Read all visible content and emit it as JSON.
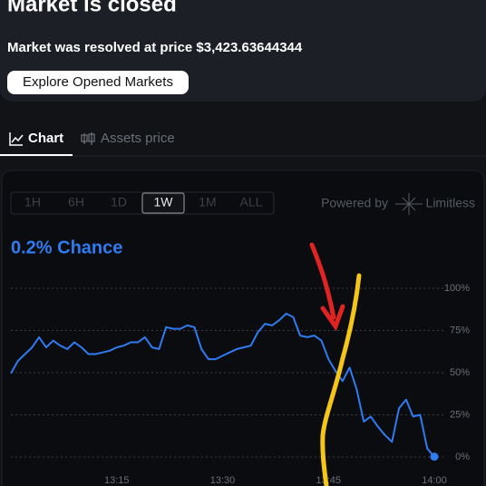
{
  "header": {
    "title": "Market is closed",
    "resolution": "Market was resolved at price $3,423.63644344",
    "button": "Explore Opened Markets"
  },
  "tabs": [
    "Chart",
    "Assets price"
  ],
  "ranges": [
    "1H",
    "6H",
    "1D",
    "1W",
    "1M",
    "ALL"
  ],
  "active_range": "1W",
  "powered_by": "Powered by",
  "brand": "Limitless",
  "chance_label": "0.2% Chance",
  "chart_data": {
    "type": "line",
    "color": "#2f7bf0",
    "grid": true,
    "x": [
      "13:00",
      "13:01",
      "13:02",
      "13:03",
      "13:04",
      "13:05",
      "13:06",
      "13:07",
      "13:08",
      "13:09",
      "13:10",
      "13:11",
      "13:12",
      "13:13",
      "13:14",
      "13:15",
      "13:16",
      "13:17",
      "13:18",
      "13:19",
      "13:20",
      "13:21",
      "13:22",
      "13:23",
      "13:24",
      "13:25",
      "13:26",
      "13:27",
      "13:28",
      "13:29",
      "13:30",
      "13:31",
      "13:32",
      "13:33",
      "13:34",
      "13:35",
      "13:36",
      "13:37",
      "13:38",
      "13:39",
      "13:40",
      "13:41",
      "13:42",
      "13:43",
      "13:44",
      "13:45",
      "13:46",
      "13:47",
      "13:48",
      "13:49",
      "13:50",
      "13:51",
      "13:52",
      "13:53",
      "13:54",
      "13:55",
      "13:56",
      "13:57",
      "13:58",
      "13:59",
      "14:00"
    ],
    "values": [
      49.5,
      57,
      61,
      65,
      71,
      65,
      69,
      66,
      64,
      68,
      65,
      61,
      61,
      62,
      63,
      65,
      66,
      68,
      68,
      71,
      65,
      64,
      77,
      76,
      76,
      78,
      77,
      64,
      58,
      58,
      60,
      62,
      64,
      65,
      66,
      74,
      79,
      78,
      81,
      85,
      83,
      72,
      71,
      72,
      69,
      58,
      51,
      45,
      53,
      40,
      21,
      24,
      18,
      13,
      9,
      29,
      34,
      24,
      25,
      5,
      0.2
    ],
    "ylim": [
      0,
      100
    ],
    "yticks": [
      {
        "value": 0,
        "label": "0%"
      },
      {
        "value": 25,
        "label": "25%"
      },
      {
        "value": 50,
        "label": "50%"
      },
      {
        "value": 75,
        "label": "75%"
      },
      {
        "value": 100,
        "label": "100%"
      }
    ],
    "xticks": [
      "13:15",
      "13:30",
      "13:45",
      "14:00"
    ]
  }
}
